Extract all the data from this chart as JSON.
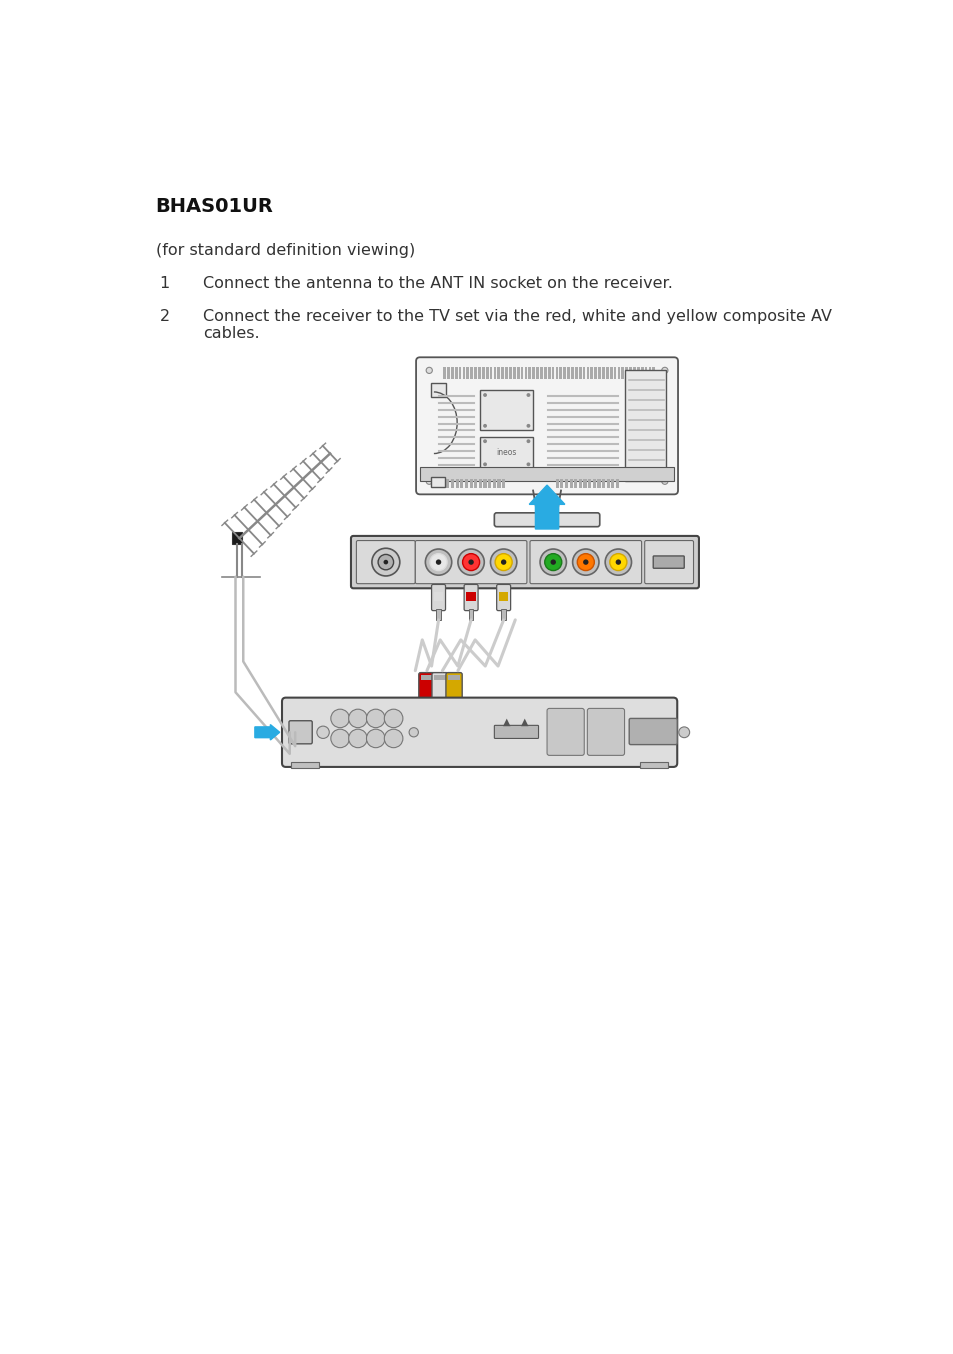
{
  "title": "BHAS01UR",
  "subtitle": "(for standard definition viewing)",
  "step1": "Connect the antenna to the ANT IN socket on the receiver.",
  "step2_line1": "Connect the receiver to the TV set via the red, white and yellow composite AV",
  "step2_line2": "cables.",
  "bg_color": "#ffffff",
  "text_color": "#333333",
  "title_fontsize": 14,
  "body_fontsize": 11.5,
  "blue_color": "#29ABE2",
  "red_color": "#CC0000",
  "yellow_color": "#D4A800",
  "green_color": "#1A7A1A",
  "orange_color": "#CC5500",
  "line_color": "#555555",
  "light_gray": "#E8E8E8",
  "mid_gray": "#C8C8C8",
  "dark_gray": "#888888"
}
